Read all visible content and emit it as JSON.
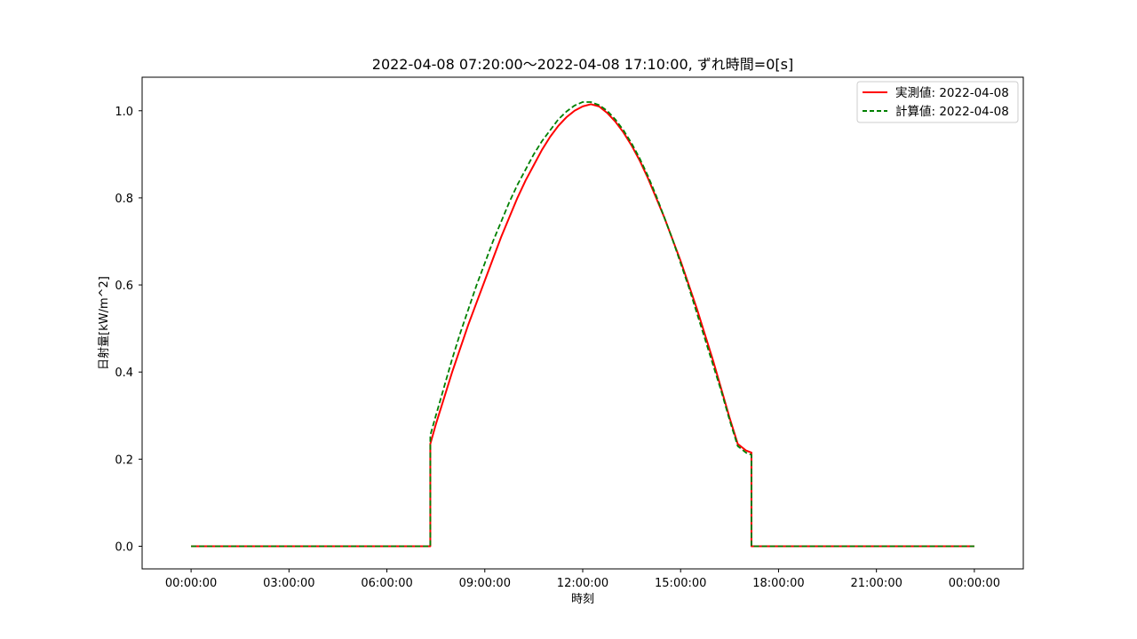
{
  "chart_data": {
    "type": "line",
    "title": "2022-04-08 07:20:00〜2022-04-08 17:10:00, ずれ時間=0[s]",
    "xlabel": "時刻",
    "ylabel": "日射量[kW/m^2]",
    "xlim_hours": [
      -1.5,
      25.5
    ],
    "ylim": [
      -0.052,
      1.077
    ],
    "x_ticks": [
      {
        "hour": 0,
        "label": "00:00:00"
      },
      {
        "hour": 3,
        "label": "03:00:00"
      },
      {
        "hour": 6,
        "label": "06:00:00"
      },
      {
        "hour": 9,
        "label": "09:00:00"
      },
      {
        "hour": 12,
        "label": "12:00:00"
      },
      {
        "hour": 15,
        "label": "15:00:00"
      },
      {
        "hour": 18,
        "label": "18:00:00"
      },
      {
        "hour": 21,
        "label": "21:00:00"
      },
      {
        "hour": 24,
        "label": "00:00:00"
      }
    ],
    "y_ticks": [
      {
        "value": 0.0,
        "label": "0.0"
      },
      {
        "value": 0.2,
        "label": "0.2"
      },
      {
        "value": 0.4,
        "label": "0.4"
      },
      {
        "value": 0.6,
        "label": "0.6"
      },
      {
        "value": 0.8,
        "label": "0.8"
      },
      {
        "value": 1.0,
        "label": "1.0"
      }
    ],
    "grid": false,
    "legend_position": "top-right",
    "series": [
      {
        "name": "実測値: 2022-04-08",
        "color": "#ff0000",
        "style": "solid",
        "points": [
          [
            0,
            0.0
          ],
          [
            7.33,
            0.0
          ],
          [
            7.33,
            0.235
          ],
          [
            7.5,
            0.28
          ],
          [
            7.75,
            0.34
          ],
          [
            8.0,
            0.4
          ],
          [
            8.25,
            0.455
          ],
          [
            8.5,
            0.51
          ],
          [
            8.75,
            0.56
          ],
          [
            9.0,
            0.61
          ],
          [
            9.25,
            0.66
          ],
          [
            9.5,
            0.71
          ],
          [
            9.75,
            0.755
          ],
          [
            10.0,
            0.8
          ],
          [
            10.25,
            0.84
          ],
          [
            10.5,
            0.875
          ],
          [
            10.75,
            0.91
          ],
          [
            11.0,
            0.94
          ],
          [
            11.25,
            0.965
          ],
          [
            11.5,
            0.985
          ],
          [
            11.75,
            1.0
          ],
          [
            12.0,
            1.01
          ],
          [
            12.25,
            1.015
          ],
          [
            12.5,
            1.01
          ],
          [
            12.75,
            0.995
          ],
          [
            13.0,
            0.975
          ],
          [
            13.25,
            0.95
          ],
          [
            13.5,
            0.92
          ],
          [
            13.75,
            0.885
          ],
          [
            14.0,
            0.845
          ],
          [
            14.25,
            0.8
          ],
          [
            14.5,
            0.755
          ],
          [
            14.75,
            0.705
          ],
          [
            15.0,
            0.655
          ],
          [
            15.25,
            0.6
          ],
          [
            15.5,
            0.545
          ],
          [
            15.75,
            0.485
          ],
          [
            16.0,
            0.425
          ],
          [
            16.25,
            0.36
          ],
          [
            16.5,
            0.295
          ],
          [
            16.75,
            0.235
          ],
          [
            17.0,
            0.22
          ],
          [
            17.17,
            0.215
          ],
          [
            17.17,
            0.0
          ],
          [
            24,
            0.0
          ]
        ]
      },
      {
        "name": "計算値: 2022-04-08",
        "color": "#008000",
        "style": "dashed",
        "points": [
          [
            0,
            0.0
          ],
          [
            7.33,
            0.0
          ],
          [
            7.33,
            0.255
          ],
          [
            7.5,
            0.3
          ],
          [
            7.75,
            0.365
          ],
          [
            8.0,
            0.43
          ],
          [
            8.25,
            0.49
          ],
          [
            8.5,
            0.545
          ],
          [
            8.75,
            0.6
          ],
          [
            9.0,
            0.65
          ],
          [
            9.25,
            0.7
          ],
          [
            9.5,
            0.745
          ],
          [
            9.75,
            0.79
          ],
          [
            10.0,
            0.83
          ],
          [
            10.25,
            0.865
          ],
          [
            10.5,
            0.9
          ],
          [
            10.75,
            0.93
          ],
          [
            11.0,
            0.955
          ],
          [
            11.25,
            0.98
          ],
          [
            11.5,
            0.998
          ],
          [
            11.75,
            1.012
          ],
          [
            12.0,
            1.02
          ],
          [
            12.25,
            1.02
          ],
          [
            12.5,
            1.013
          ],
          [
            12.75,
            1.0
          ],
          [
            13.0,
            0.98
          ],
          [
            13.25,
            0.955
          ],
          [
            13.5,
            0.925
          ],
          [
            13.75,
            0.89
          ],
          [
            14.0,
            0.85
          ],
          [
            14.25,
            0.805
          ],
          [
            14.5,
            0.755
          ],
          [
            14.75,
            0.705
          ],
          [
            15.0,
            0.65
          ],
          [
            15.25,
            0.595
          ],
          [
            15.5,
            0.535
          ],
          [
            15.75,
            0.475
          ],
          [
            16.0,
            0.415
          ],
          [
            16.25,
            0.355
          ],
          [
            16.5,
            0.29
          ],
          [
            16.75,
            0.23
          ],
          [
            17.0,
            0.215
          ],
          [
            17.17,
            0.21
          ],
          [
            17.17,
            0.0
          ],
          [
            24,
            0.0
          ]
        ]
      }
    ]
  }
}
